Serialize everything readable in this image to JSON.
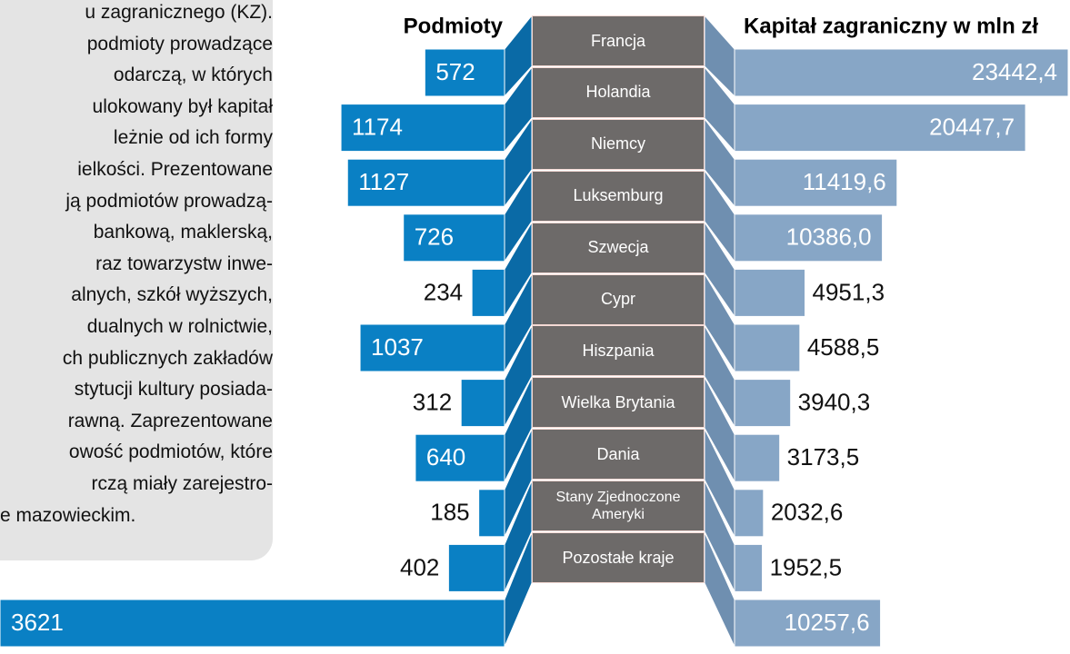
{
  "text_box": {
    "lines": [
      "u zagranicznego (KZ).",
      "podmioty prowadzące",
      "odarczą, w których",
      "ulokowany był kapitał",
      "leżnie od ich formy",
      "ielkości. Prezentowane",
      "ją podmiotów prowadzą-",
      "bankową, maklerską,",
      "raz towarzystw inwe-",
      "alnych, szkół wyższych,",
      "dualnych w rolnictwie,",
      "ch publicznych zakładów",
      "stytucji kultury posiada-",
      "rawną. Zaprezentowane",
      "owość podmiotów, które",
      "rczą miały zarejestro-",
      "e mazowieckim."
    ]
  },
  "chart_data": {
    "type": "butterfly",
    "categories": [
      "Francja",
      "Holandia",
      "Niemcy",
      "Luksemburg",
      "Szwecja",
      "Cypr",
      "Hiszpania",
      "Wielka Brytania",
      "Dania",
      "Stany Zjednoczone Ameryki",
      "Pozostałe kraje"
    ],
    "category_color": "#6d6a69",
    "series": [
      {
        "name": "Podmioty",
        "color": "#0a80c4",
        "values": [
          572,
          1174,
          1127,
          726,
          234,
          1037,
          312,
          640,
          185,
          402,
          3621
        ]
      },
      {
        "name": "Kapitał zagraniczny w mln zł",
        "color": "#87a6c6",
        "values": [
          23442.4,
          20447.7,
          11419.6,
          10386.0,
          4951.3,
          4588.5,
          3940.3,
          3173.5,
          2032.6,
          1952.5,
          10257.6
        ],
        "value_labels": [
          "23442,4",
          "20447,7",
          "11419,6",
          "10386,0",
          "4951,3",
          "4588,5",
          "3940,3",
          "3173,5",
          "2032,6",
          "1952,5",
          "10257,6"
        ]
      }
    ]
  }
}
